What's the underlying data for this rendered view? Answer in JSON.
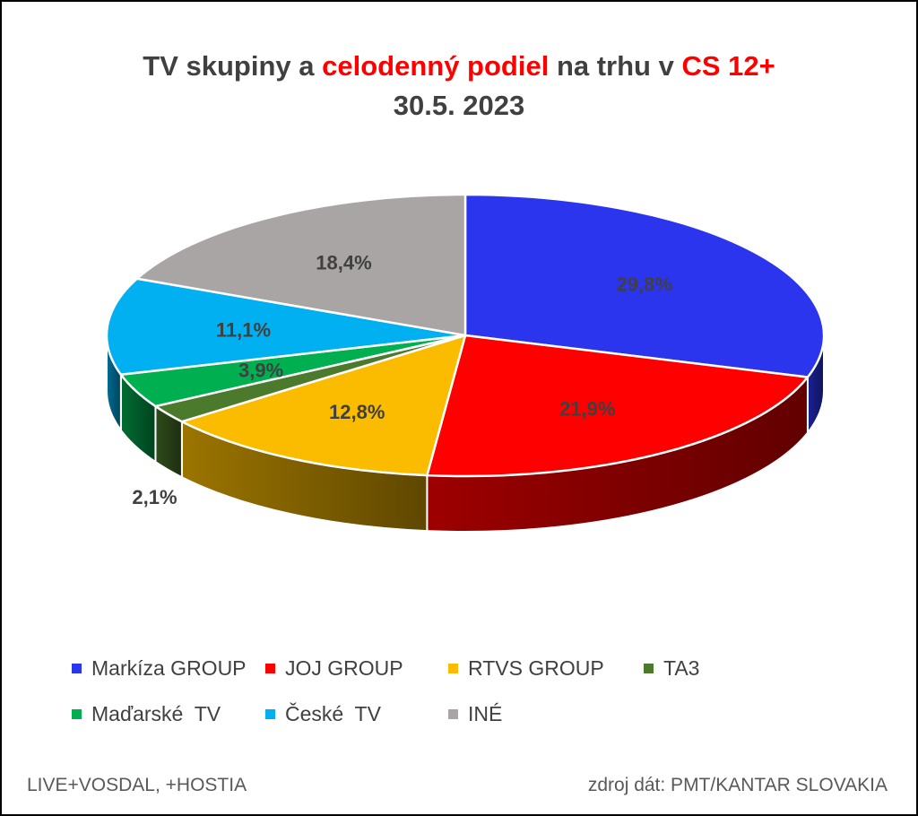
{
  "title": {
    "line1_part1": "TV skupiny a ",
    "line1_accent1": "celodenný podiel",
    "line1_part2": " na trhu v ",
    "line1_accent2": "CS 12+",
    "line2": "30.5. 2023"
  },
  "colors": {
    "title_text": "#404040",
    "title_accent": "#ff0000",
    "label_text": "#404040"
  },
  "chart_data": {
    "type": "pie",
    "title": "TV skupiny a celodenný podiel na trhu v CS 12+ 30.5. 2023",
    "unit": "%",
    "three_d": true,
    "legend_position": "bottom",
    "slices": [
      {
        "name": "Markíza GROUP",
        "value": 29.8,
        "label": "29,8%",
        "color": "#2b35ee"
      },
      {
        "name": "JOJ GROUP",
        "value": 21.9,
        "label": "21,9%",
        "color": "#ff0000"
      },
      {
        "name": "RTVS GROUP",
        "value": 12.8,
        "label": "12,8%",
        "color": "#fbbc00"
      },
      {
        "name": "TA3",
        "value": 2.1,
        "label": "2,1%",
        "color": "#4c7a2c"
      },
      {
        "name": "Maďarské  TV",
        "value": 3.9,
        "label": "3,9%",
        "color": "#00b050"
      },
      {
        "name": "České  TV",
        "value": 11.1,
        "label": "11,1%",
        "color": "#00b0f0"
      },
      {
        "name": "INÉ",
        "value": 18.4,
        "label": "18,4%",
        "color": "#a9a5a5"
      }
    ]
  },
  "footer": {
    "left": "LIVE+VOSDAL, +HOSTIA",
    "right": "zdroj dát: PMT/KANTAR SLOVAKIA"
  }
}
